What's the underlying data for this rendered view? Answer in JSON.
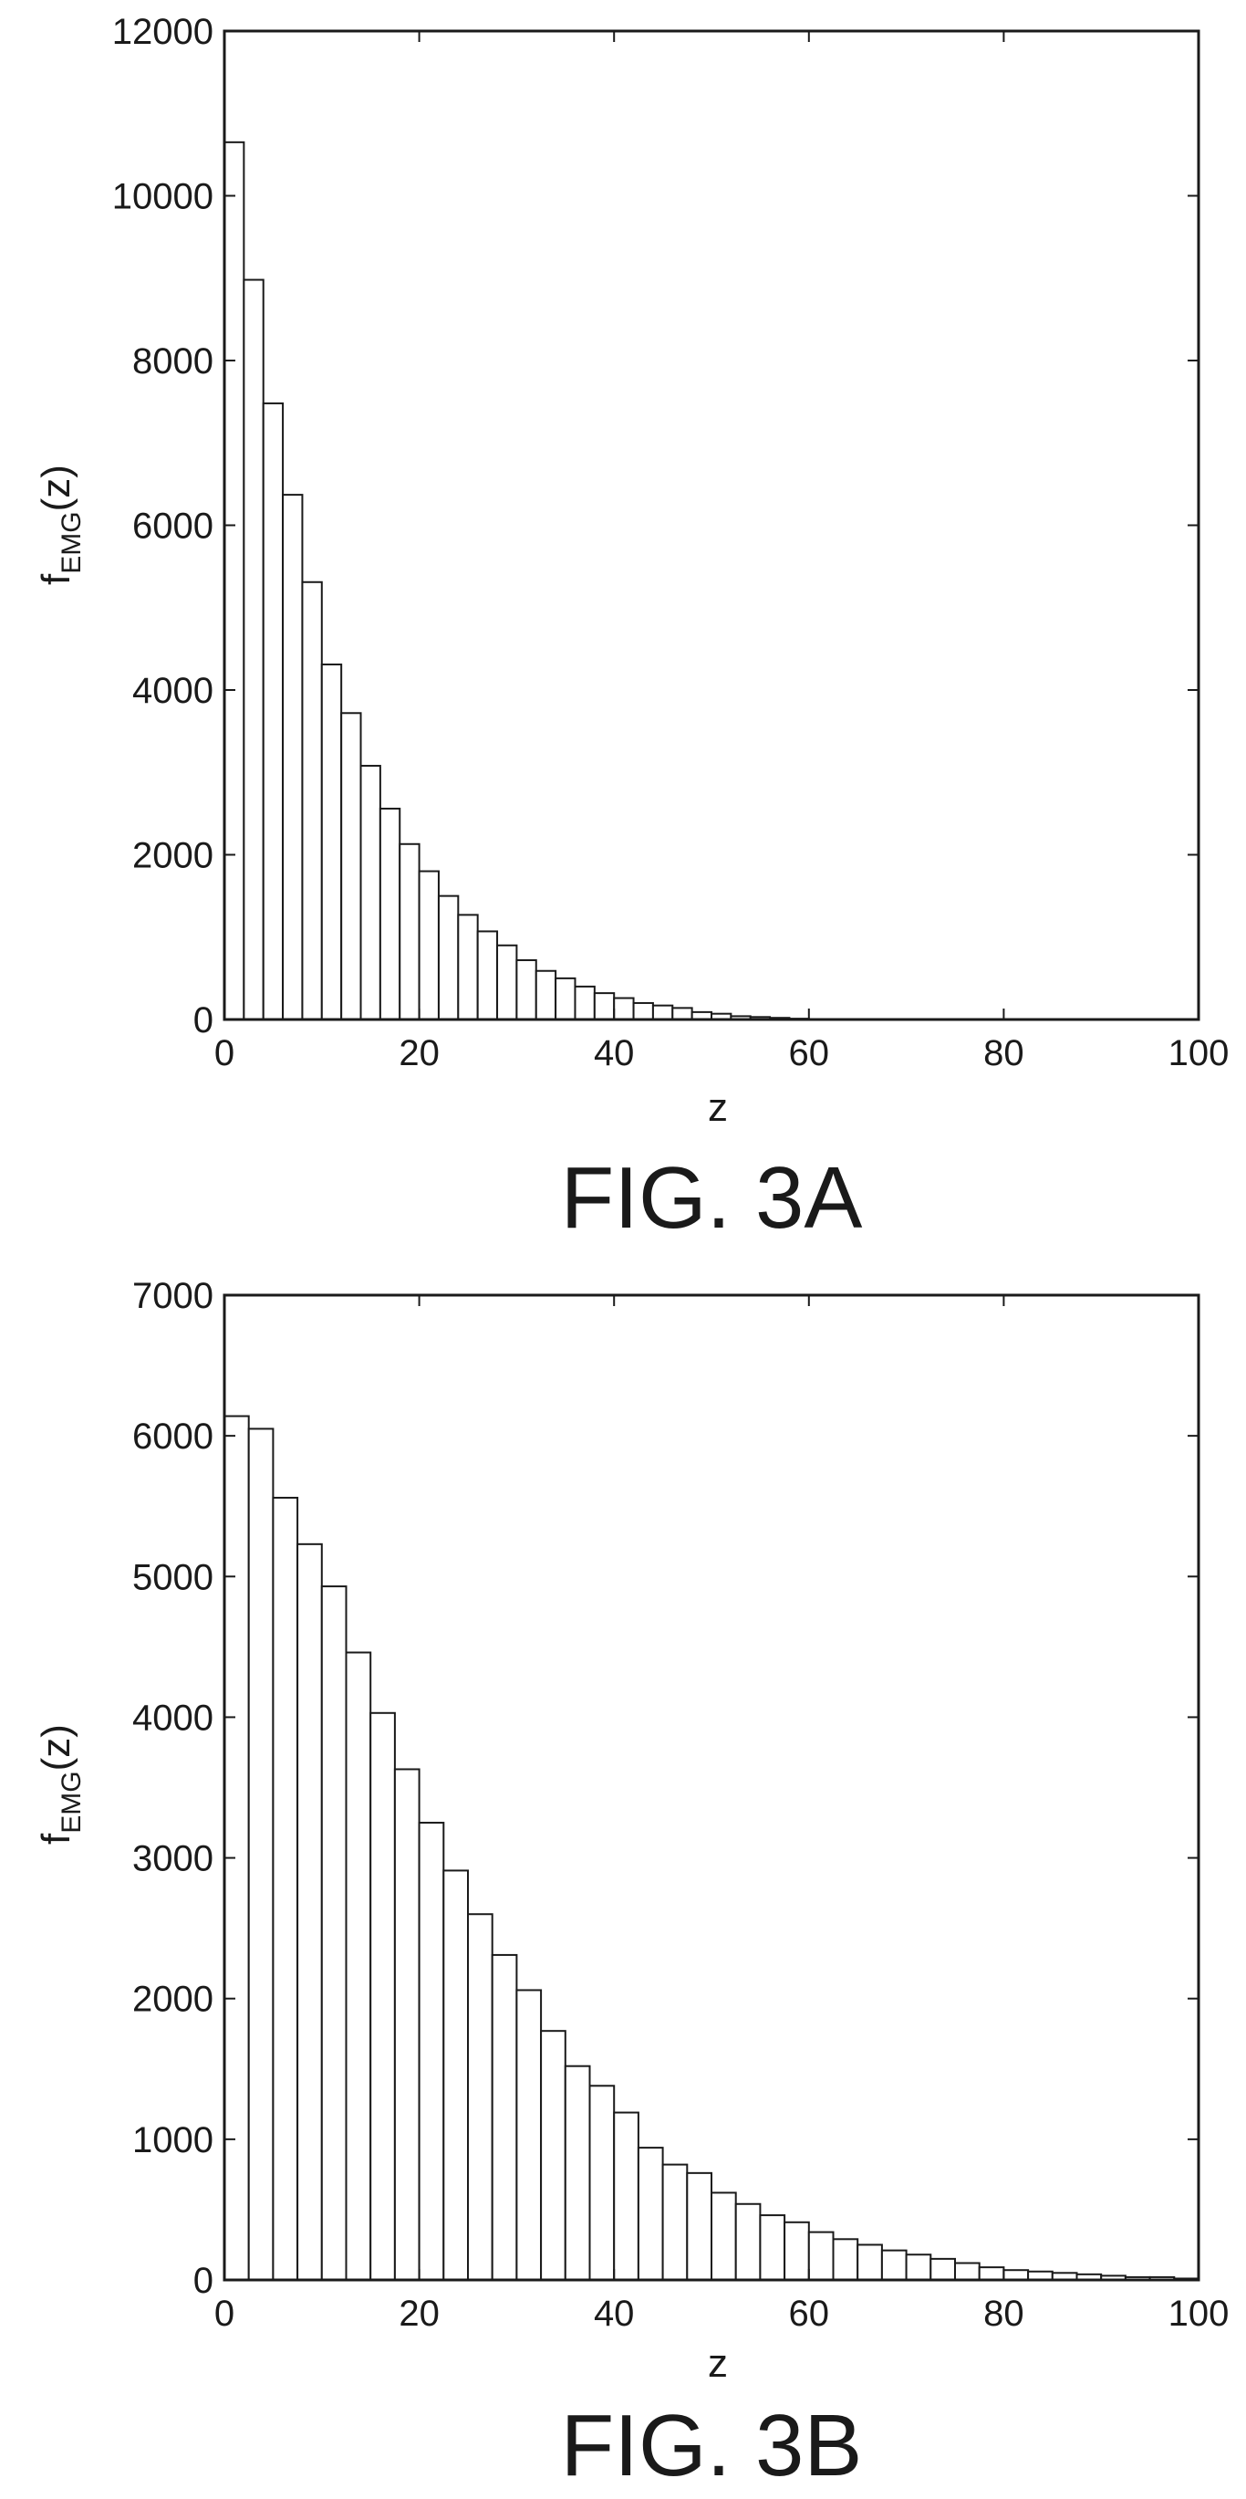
{
  "chart_data": [
    {
      "id": "fig3a",
      "type": "bar",
      "caption": "FIG. 3A",
      "xlabel": "z",
      "ylabel": {
        "main": "f",
        "sub": "EMG",
        "suffix": "(z)"
      },
      "xlim": [
        0,
        100
      ],
      "ylim": [
        0,
        12000
      ],
      "xticks": [
        0,
        20,
        40,
        60,
        80,
        100
      ],
      "yticks": [
        0,
        2000,
        4000,
        6000,
        8000,
        10000,
        12000
      ],
      "bin_width": 2,
      "x": [
        0,
        2,
        4,
        6,
        8,
        10,
        12,
        14,
        16,
        18,
        20,
        22,
        24,
        26,
        28,
        30,
        32,
        34,
        36,
        38,
        40,
        42,
        44,
        46,
        48,
        50,
        52,
        54,
        56,
        58,
        60,
        62,
        64,
        66,
        68,
        70,
        72,
        74,
        76,
        78,
        80,
        82,
        84,
        86,
        88,
        90,
        92,
        94,
        96,
        98
      ],
      "values": [
        10650,
        8980,
        7480,
        6370,
        5310,
        4310,
        3720,
        3080,
        2560,
        2130,
        1800,
        1500,
        1270,
        1070,
        900,
        720,
        590,
        500,
        400,
        320,
        260,
        200,
        170,
        140,
        90,
        70,
        40,
        30,
        20,
        10,
        5,
        0,
        0,
        0,
        0,
        0,
        0,
        0,
        0,
        0,
        0,
        0,
        0,
        0,
        0,
        0,
        0,
        0,
        0,
        0
      ],
      "grid": false,
      "legend": "none"
    },
    {
      "id": "fig3b",
      "type": "bar",
      "caption": "FIG. 3B",
      "xlabel": "z",
      "ylabel": {
        "main": "f",
        "sub": "EMG",
        "suffix": "(z)"
      },
      "xlim": [
        0,
        100
      ],
      "ylim": [
        0,
        7000
      ],
      "xticks": [
        0,
        20,
        40,
        60,
        80,
        100
      ],
      "yticks": [
        0,
        1000,
        2000,
        3000,
        4000,
        5000,
        6000,
        7000
      ],
      "bin_width": 2.5,
      "x": [
        0,
        2.5,
        5,
        7.5,
        10,
        12.5,
        15,
        17.5,
        20,
        22.5,
        25,
        27.5,
        30,
        32.5,
        35,
        37.5,
        40,
        42.5,
        45,
        47.5,
        50,
        52.5,
        55,
        57.5,
        60,
        62.5,
        65,
        67.5,
        70,
        72.5,
        75,
        77.5,
        80,
        82.5,
        85,
        87.5,
        90,
        92.5,
        95,
        97.5
      ],
      "values": [
        6140,
        6050,
        5560,
        5230,
        4930,
        4460,
        4030,
        3630,
        3250,
        2910,
        2600,
        2310,
        2060,
        1770,
        1520,
        1380,
        1190,
        940,
        820,
        760,
        620,
        540,
        460,
        410,
        340,
        290,
        250,
        210,
        180,
        150,
        120,
        90,
        70,
        60,
        50,
        40,
        30,
        20,
        20,
        10
      ],
      "grid": false,
      "legend": "none"
    }
  ]
}
